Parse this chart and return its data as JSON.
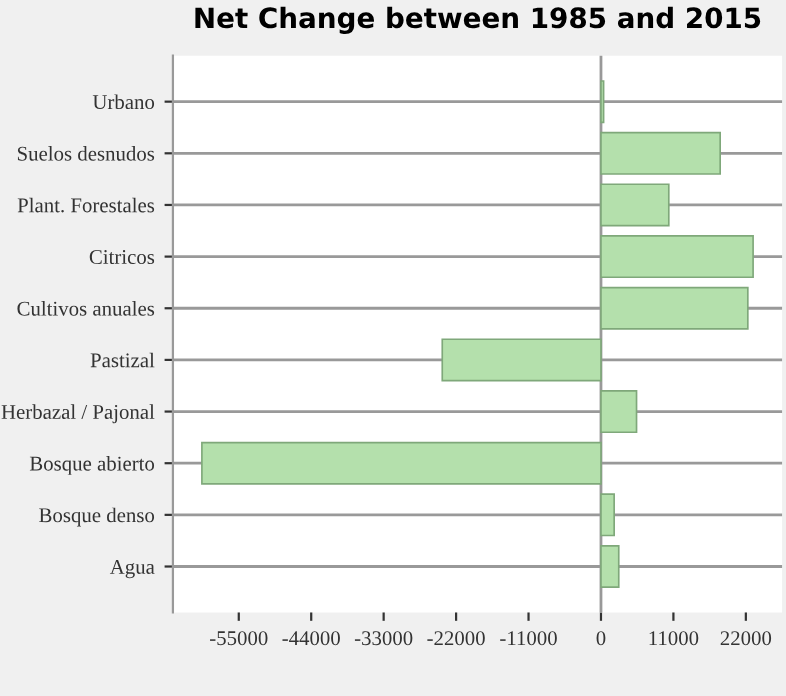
{
  "chart_data": {
    "type": "bar",
    "orientation": "horizontal",
    "title": "Net Change between 1985 and 2015",
    "categories": [
      "Urbano",
      "Suelos desnudos",
      "Plant. Forestales",
      "Citricos",
      "Cultivos anuales",
      "Pastizal",
      "Herbazal / Pajonal",
      "Bosque abierto",
      "Bosque denso",
      "Agua"
    ],
    "values": [
      400,
      18100,
      10300,
      23100,
      22300,
      -24100,
      5400,
      -60600,
      2000,
      2700
    ],
    "color": "#b4e0ac",
    "xlim": [
      -65000,
      27500
    ],
    "xticks": [
      -55000,
      -44000,
      -33000,
      -22000,
      -11000,
      0,
      11000,
      22000
    ],
    "grid": "y",
    "ref_lines": [
      {
        "axis": "x",
        "value": 0,
        "color": "#999999"
      }
    ]
  }
}
